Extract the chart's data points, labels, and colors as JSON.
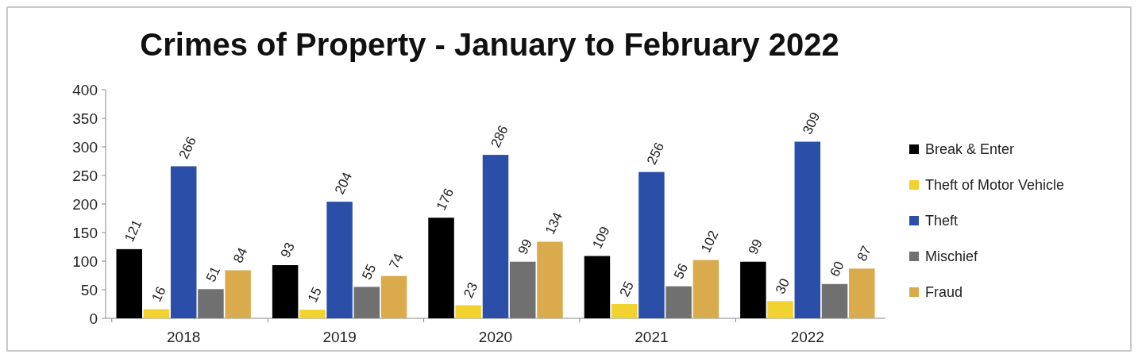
{
  "chart_data": {
    "type": "bar",
    "title": "Crimes of Property - January to February 2022",
    "categories": [
      "2018",
      "2019",
      "2020",
      "2021",
      "2022"
    ],
    "series": [
      {
        "name": "Break & Enter",
        "color": "#000000",
        "values": [
          121,
          93,
          176,
          109,
          99
        ]
      },
      {
        "name": "Theft of Motor Vehicle",
        "color": "#f2d22e",
        "values": [
          16,
          15,
          23,
          25,
          30
        ]
      },
      {
        "name": "Theft",
        "color": "#2b4fa8",
        "values": [
          266,
          204,
          286,
          256,
          309
        ]
      },
      {
        "name": "Mischief",
        "color": "#707070",
        "values": [
          51,
          55,
          99,
          56,
          60
        ]
      },
      {
        "name": "Fraud",
        "color": "#d9ab4c",
        "values": [
          84,
          74,
          134,
          102,
          87
        ]
      }
    ],
    "ylim": [
      0,
      400
    ],
    "yticks": [
      0,
      50,
      100,
      150,
      200,
      250,
      300,
      350,
      400
    ],
    "data_labels": true,
    "legend": "right"
  }
}
